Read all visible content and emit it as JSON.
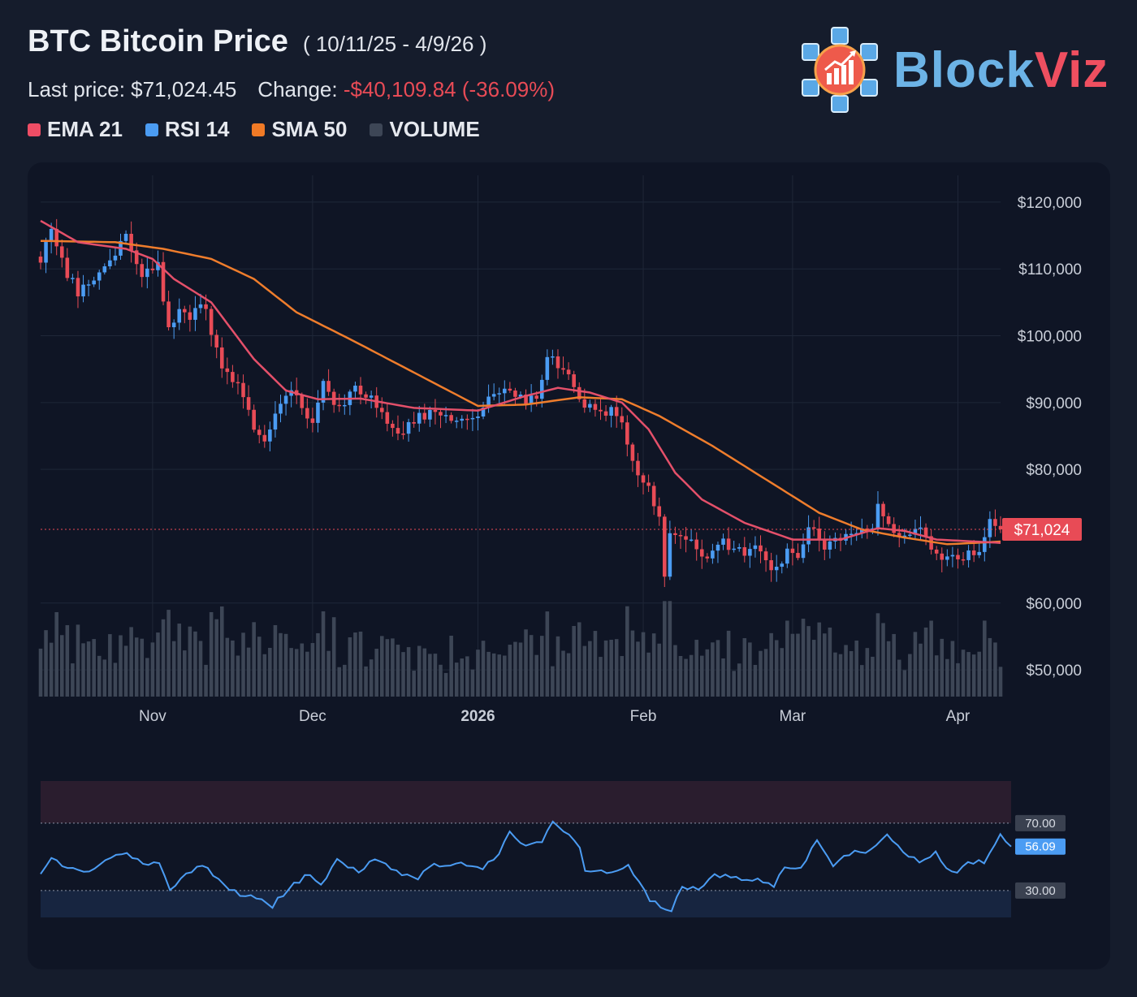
{
  "header": {
    "title": "BTC Bitcoin Price",
    "date_range": "( 10/11/25 - 4/9/26 )",
    "last_price_label": "Last price: $71,024.45",
    "change_label": "Change:",
    "change_value": "-$40,109.84 (-36.09%)"
  },
  "legend": [
    {
      "label": "EMA 21",
      "color": "#ee4d65"
    },
    {
      "label": "RSI 14",
      "color": "#4b9cf3"
    },
    {
      "label": "SMA 50",
      "color": "#f07a26"
    },
    {
      "label": "VOLUME",
      "color": "#3d4656"
    }
  ],
  "logo": {
    "text_a": "Block",
    "text_b": "Viz",
    "icon": "cube-network-chart-icon"
  },
  "colors": {
    "up": "#4b9cf3",
    "down": "#e84b56",
    "ema": "#e4506a",
    "sma": "#ef7d2c",
    "rsi": "#4b9cf3",
    "volume": "#3d4656",
    "price_tag": "#e84b56"
  },
  "chart_data": {
    "type": "candlestick",
    "x_range": [
      "2025-10-11",
      "2026-04-09"
    ],
    "ylim": [
      46000,
      124000
    ],
    "y_ticks": [
      {
        "value": 120000,
        "label": "$120,000"
      },
      {
        "value": 110000,
        "label": "$110,000"
      },
      {
        "value": 100000,
        "label": "$100,000"
      },
      {
        "value": 90000,
        "label": "$90,000"
      },
      {
        "value": 80000,
        "label": "$80,000"
      },
      {
        "value": 60000,
        "label": "$60,000"
      },
      {
        "value": 50000,
        "label": "$50,000"
      }
    ],
    "x_ticks": [
      {
        "date": "2025-11-01",
        "label": "Nov",
        "bold": false
      },
      {
        "date": "2025-12-01",
        "label": "Dec",
        "bold": false
      },
      {
        "date": "2026-01-01",
        "label": "2026",
        "bold": true
      },
      {
        "date": "2026-02-01",
        "label": "Feb",
        "bold": false
      },
      {
        "date": "2026-03-01",
        "label": "Mar",
        "bold": false
      },
      {
        "date": "2026-04-01",
        "label": "Apr",
        "bold": false
      }
    ],
    "last_price": {
      "value": 71024,
      "label": "$71,024"
    },
    "close_keyframes": [
      [
        "2025-10-11",
        111500
      ],
      [
        "2025-10-13",
        115200
      ],
      [
        "2025-10-16",
        109500
      ],
      [
        "2025-10-18",
        106500
      ],
      [
        "2025-10-21",
        108200
      ],
      [
        "2025-10-24",
        111000
      ],
      [
        "2025-10-27",
        114500
      ],
      [
        "2025-10-30",
        109000
      ],
      [
        "2025-11-02",
        110500
      ],
      [
        "2025-11-04",
        101500
      ],
      [
        "2025-11-06",
        103500
      ],
      [
        "2025-11-08",
        102500
      ],
      [
        "2025-11-10",
        105500
      ],
      [
        "2025-11-12",
        101000
      ],
      [
        "2025-11-14",
        95000
      ],
      [
        "2025-11-17",
        92500
      ],
      [
        "2025-11-20",
        86500
      ],
      [
        "2025-11-22",
        84500
      ],
      [
        "2025-11-24",
        88000
      ],
      [
        "2025-11-26",
        91000
      ],
      [
        "2025-11-28",
        91500
      ],
      [
        "2025-12-01",
        86500
      ],
      [
        "2025-12-03",
        92500
      ],
      [
        "2025-12-06",
        89500
      ],
      [
        "2025-12-09",
        92500
      ],
      [
        "2025-12-12",
        90500
      ],
      [
        "2025-12-15",
        86500
      ],
      [
        "2025-12-18",
        86000
      ],
      [
        "2025-12-21",
        88500
      ],
      [
        "2025-12-25",
        87500
      ],
      [
        "2025-12-29",
        87500
      ],
      [
        "2026-01-01",
        88500
      ],
      [
        "2026-01-04",
        91500
      ],
      [
        "2026-01-07",
        92000
      ],
      [
        "2026-01-10",
        90500
      ],
      [
        "2026-01-12",
        91000
      ],
      [
        "2026-01-14",
        96500
      ],
      [
        "2026-01-17",
        95200
      ],
      [
        "2026-01-19",
        92800
      ],
      [
        "2026-01-21",
        89800
      ],
      [
        "2026-01-24",
        89000
      ],
      [
        "2026-01-27",
        88500
      ],
      [
        "2026-01-29",
        84500
      ],
      [
        "2026-01-31",
        78500
      ],
      [
        "2026-02-02",
        77000
      ],
      [
        "2026-02-04",
        73000
      ],
      [
        "2026-02-05",
        63500
      ],
      [
        "2026-02-06",
        70500
      ],
      [
        "2026-02-09",
        70000
      ],
      [
        "2026-02-12",
        66500
      ],
      [
        "2026-02-15",
        69500
      ],
      [
        "2026-02-18",
        68000
      ],
      [
        "2026-02-21",
        67500
      ],
      [
        "2026-02-23",
        68500
      ],
      [
        "2026-02-25",
        64500
      ],
      [
        "2026-02-28",
        67500
      ],
      [
        "2026-03-02",
        66500
      ],
      [
        "2026-03-04",
        72000
      ],
      [
        "2026-03-07",
        68000
      ],
      [
        "2026-03-10",
        69500
      ],
      [
        "2026-03-13",
        71000
      ],
      [
        "2026-03-16",
        72000
      ],
      [
        "2026-03-17",
        74500
      ],
      [
        "2026-03-19",
        71500
      ],
      [
        "2026-03-22",
        69500
      ],
      [
        "2026-03-25",
        71000
      ],
      [
        "2026-03-27",
        67500
      ],
      [
        "2026-03-30",
        66500
      ],
      [
        "2026-04-02",
        67000
      ],
      [
        "2026-04-05",
        68000
      ],
      [
        "2026-04-07",
        72000
      ],
      [
        "2026-04-09",
        71024
      ]
    ],
    "ema21_keyframes": [
      [
        "2025-10-11",
        117200
      ],
      [
        "2025-10-18",
        114000
      ],
      [
        "2025-10-27",
        113000
      ],
      [
        "2025-11-01",
        111500
      ],
      [
        "2025-11-05",
        108500
      ],
      [
        "2025-11-12",
        105000
      ],
      [
        "2025-11-20",
        96500
      ],
      [
        "2025-11-26",
        91800
      ],
      [
        "2025-12-02",
        90500
      ],
      [
        "2025-12-10",
        90600
      ],
      [
        "2025-12-20",
        89200
      ],
      [
        "2026-01-01",
        88800
      ],
      [
        "2026-01-10",
        91000
      ],
      [
        "2026-01-16",
        92200
      ],
      [
        "2026-01-22",
        91500
      ],
      [
        "2026-01-28",
        90000
      ],
      [
        "2026-02-02",
        86000
      ],
      [
        "2026-02-07",
        79500
      ],
      [
        "2026-02-12",
        75500
      ],
      [
        "2026-02-20",
        72000
      ],
      [
        "2026-03-01",
        69500
      ],
      [
        "2026-03-10",
        69500
      ],
      [
        "2026-03-17",
        71200
      ],
      [
        "2026-03-22",
        70800
      ],
      [
        "2026-03-28",
        69500
      ],
      [
        "2026-04-09",
        69000
      ]
    ],
    "sma50_keyframes": [
      [
        "2025-10-11",
        114200
      ],
      [
        "2025-10-25",
        114000
      ],
      [
        "2025-11-03",
        113000
      ],
      [
        "2025-11-12",
        111500
      ],
      [
        "2025-11-20",
        108500
      ],
      [
        "2025-11-28",
        103500
      ],
      [
        "2025-12-08",
        99500
      ],
      [
        "2025-12-20",
        94500
      ],
      [
        "2026-01-01",
        89500
      ],
      [
        "2026-01-10",
        89700
      ],
      [
        "2026-01-20",
        90800
      ],
      [
        "2026-01-28",
        90500
      ],
      [
        "2026-02-04",
        88000
      ],
      [
        "2026-02-14",
        83500
      ],
      [
        "2026-02-24",
        78500
      ],
      [
        "2026-03-06",
        73500
      ],
      [
        "2026-03-14",
        71000
      ],
      [
        "2026-03-22",
        69800
      ],
      [
        "2026-03-30",
        68800
      ],
      [
        "2026-04-09",
        69200
      ]
    ],
    "volume": {
      "baseline_value": 46000
    },
    "rsi": {
      "ylim": [
        14,
        95
      ],
      "levels": [
        {
          "value": 70,
          "label": "70.00"
        },
        {
          "value": 30,
          "label": "30.00"
        }
      ],
      "last": {
        "value": 56.09,
        "label": "56.09"
      },
      "keyframes": [
        [
          "2025-10-11",
          40
        ],
        [
          "2025-10-13",
          48
        ],
        [
          "2025-10-17",
          42
        ],
        [
          "2025-10-20",
          40
        ],
        [
          "2025-10-24",
          49
        ],
        [
          "2025-10-27",
          53
        ],
        [
          "2025-10-30",
          45
        ],
        [
          "2025-11-02",
          47
        ],
        [
          "2025-11-04",
          30
        ],
        [
          "2025-11-07",
          40
        ],
        [
          "2025-11-10",
          45
        ],
        [
          "2025-11-13",
          37
        ],
        [
          "2025-11-16",
          29
        ],
        [
          "2025-11-20",
          25
        ],
        [
          "2025-11-23",
          21
        ],
        [
          "2025-11-26",
          31
        ],
        [
          "2025-11-30",
          40
        ],
        [
          "2025-12-02",
          32
        ],
        [
          "2025-12-05",
          48
        ],
        [
          "2025-12-09",
          42
        ],
        [
          "2025-12-12",
          49
        ],
        [
          "2025-12-16",
          41
        ],
        [
          "2025-12-20",
          38
        ],
        [
          "2025-12-23",
          45
        ],
        [
          "2025-12-28",
          47
        ],
        [
          "2026-01-01",
          43
        ],
        [
          "2026-01-04",
          52
        ],
        [
          "2026-01-06",
          65
        ],
        [
          "2026-01-08",
          58
        ],
        [
          "2026-01-12",
          58
        ],
        [
          "2026-01-14",
          72
        ],
        [
          "2026-01-16",
          65
        ],
        [
          "2026-01-19",
          56
        ],
        [
          "2026-01-20",
          43
        ],
        [
          "2026-01-24",
          41
        ],
        [
          "2026-01-28",
          45
        ],
        [
          "2026-01-30",
          34
        ],
        [
          "2026-02-01",
          24
        ],
        [
          "2026-02-05",
          17
        ],
        [
          "2026-02-07",
          33
        ],
        [
          "2026-02-10",
          30
        ],
        [
          "2026-02-13",
          40
        ],
        [
          "2026-02-17",
          37
        ],
        [
          "2026-02-21",
          36
        ],
        [
          "2026-02-24",
          33
        ],
        [
          "2026-02-26",
          45
        ],
        [
          "2026-03-01",
          42
        ],
        [
          "2026-03-04",
          60
        ],
        [
          "2026-03-07",
          45
        ],
        [
          "2026-03-10",
          52
        ],
        [
          "2026-03-14",
          54
        ],
        [
          "2026-03-17",
          64
        ],
        [
          "2026-03-20",
          52
        ],
        [
          "2026-03-23",
          48
        ],
        [
          "2026-03-26",
          52
        ],
        [
          "2026-03-29",
          40
        ],
        [
          "2026-04-01",
          46
        ],
        [
          "2026-04-04",
          47
        ],
        [
          "2026-04-07",
          62
        ],
        [
          "2026-04-09",
          56.09
        ]
      ]
    }
  }
}
